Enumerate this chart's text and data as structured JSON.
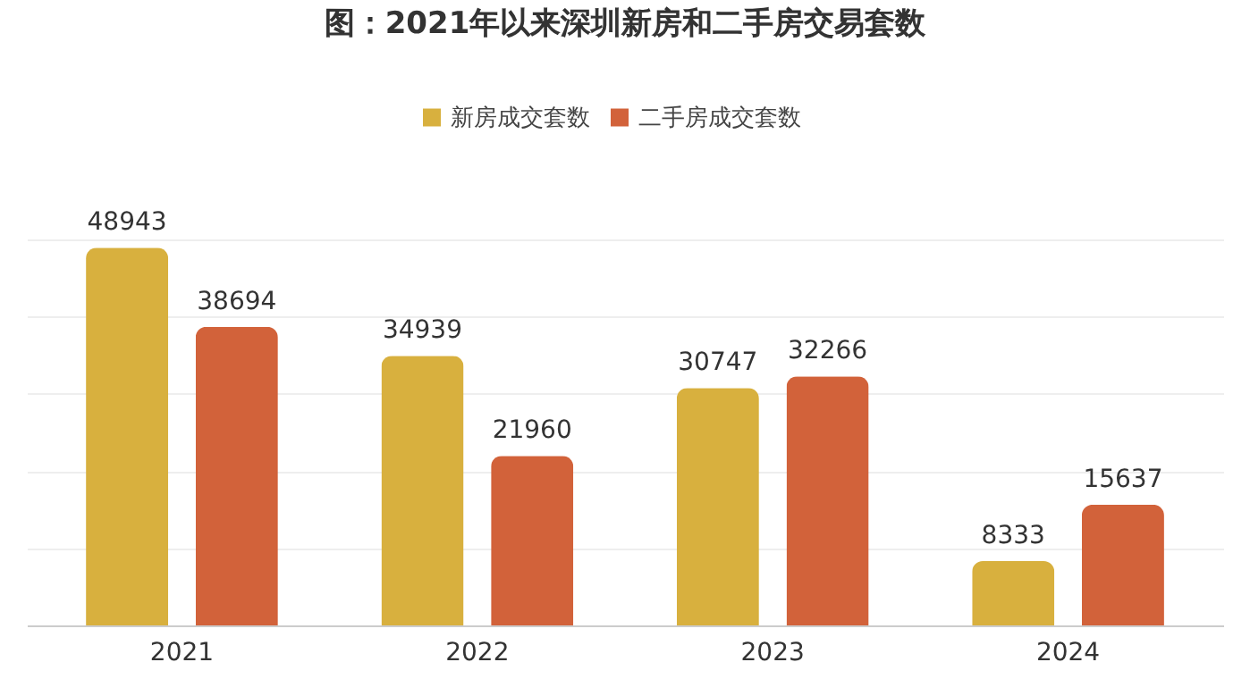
{
  "chart_data": {
    "type": "bar",
    "title": "图：2021年以来深圳新房和二手房交易套数",
    "categories": [
      "2021",
      "2022",
      "2023",
      "2024"
    ],
    "series": [
      {
        "name": "新房成交套数",
        "color": "#d8b03e",
        "values": [
          48943,
          34939,
          30747,
          8333
        ]
      },
      {
        "name": "二手房成交套数",
        "color": "#d2623a",
        "values": [
          38694,
          21960,
          32266,
          15637
        ]
      }
    ],
    "ylim": [
      0,
      50000
    ],
    "yticks": [
      {
        "value": 0,
        "label": null
      },
      {
        "value": 10000,
        "label": null
      },
      {
        "value": 20000,
        "label": null
      },
      {
        "value": 30000,
        "label": null
      },
      {
        "value": 40000,
        "label": null
      },
      {
        "value": 50000,
        "label": null
      }
    ],
    "grid": "y",
    "legend": "top",
    "tick_labels": "x",
    "data_labels": true
  }
}
